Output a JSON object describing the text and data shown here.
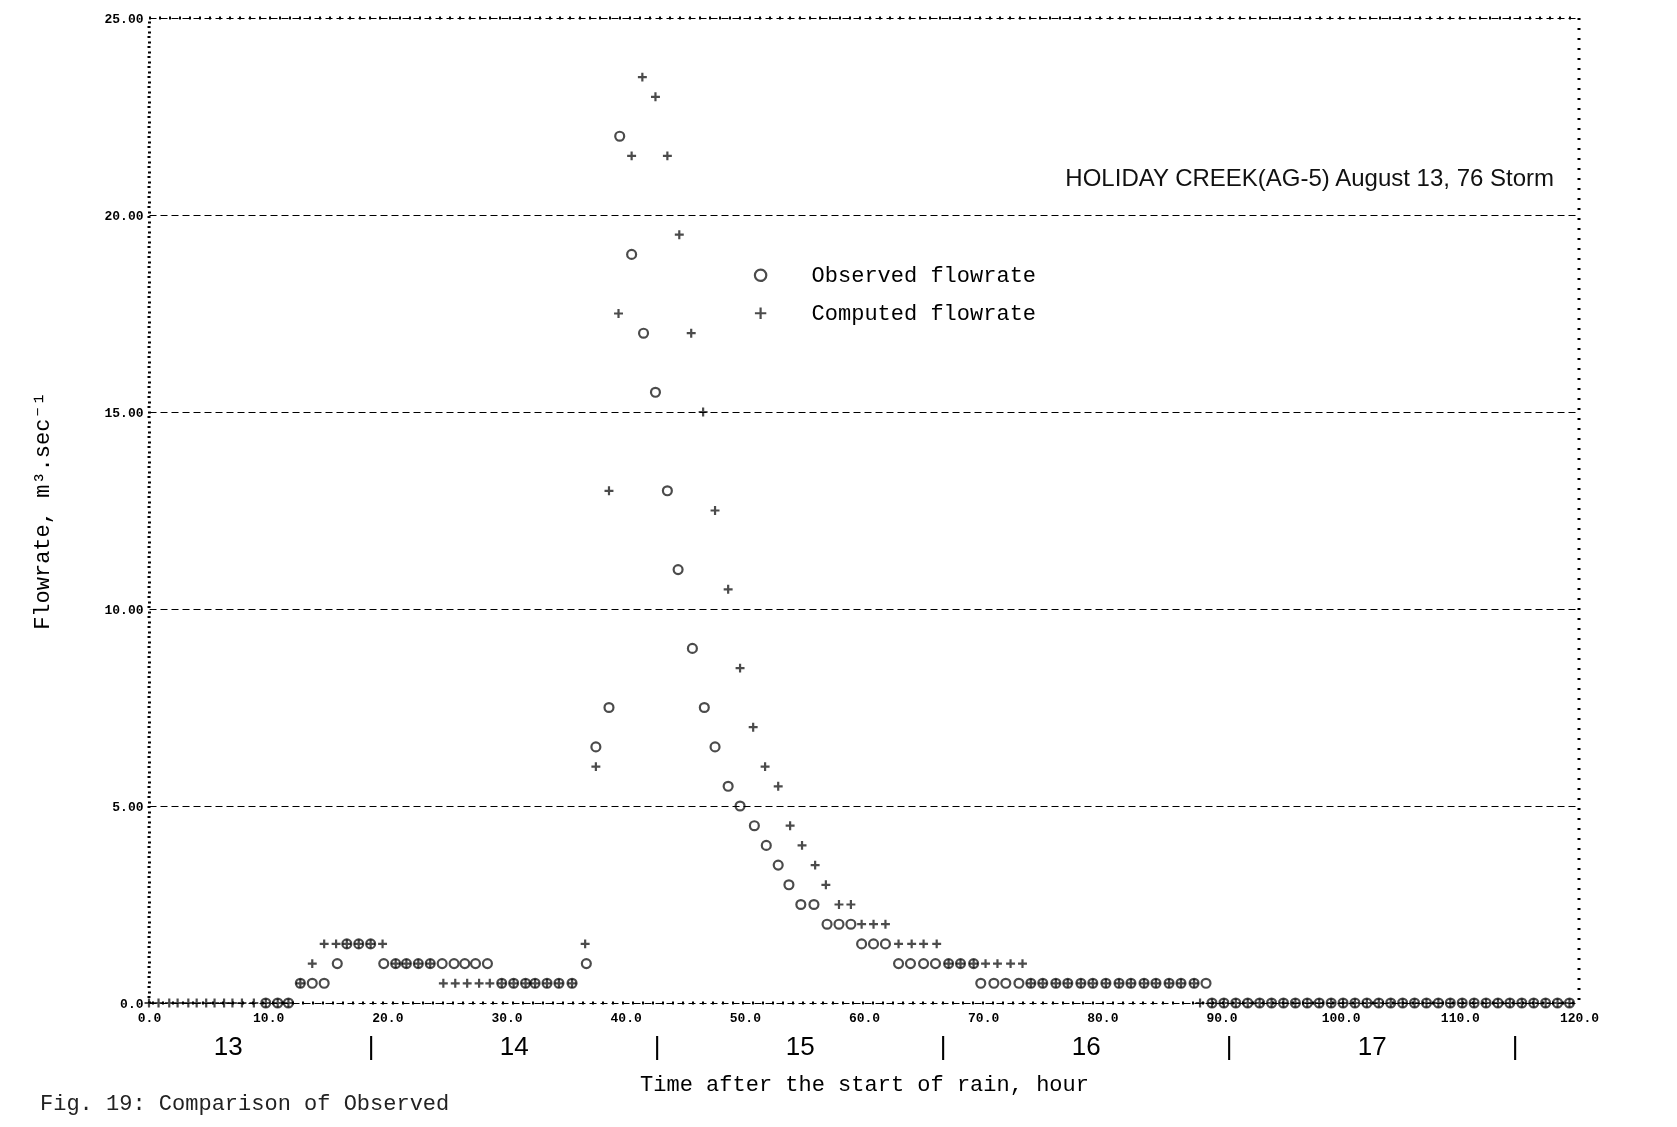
{
  "chart_data": {
    "type": "scatter",
    "title": "HOLIDAY CREEK(AG-5)  August 13, 76 Storm",
    "xlabel": "Time after the start of rain, hour",
    "ylabel": "Flowrate, m³.sec⁻¹",
    "annotations": [
      "Fig. 19: Comparison of Observed"
    ],
    "xlim": [
      0,
      120
    ],
    "xticks": [
      {
        "value": 0,
        "label": "0.0"
      },
      {
        "value": 10,
        "label": "10.0"
      },
      {
        "value": 20,
        "label": "20.0"
      },
      {
        "value": 30,
        "label": "30.0"
      },
      {
        "value": 40,
        "label": "40.0"
      },
      {
        "value": 50,
        "label": "50.0"
      },
      {
        "value": 60,
        "label": "60.0"
      },
      {
        "value": 70,
        "label": "70.0"
      },
      {
        "value": 80,
        "label": "80.0"
      },
      {
        "value": 90,
        "label": "90.0"
      },
      {
        "value": 100,
        "label": "100.0"
      },
      {
        "value": 110,
        "label": "110.0"
      },
      {
        "value": 120,
        "label": "120.0"
      }
    ],
    "x2lim": [
      "--08-13T05:24",
      "--08-18T05:24"
    ],
    "x2ticks": [
      {
        "value": "--08-13T12:00",
        "label": "13"
      },
      {
        "value": "--08-14T00:00",
        "label": "|"
      },
      {
        "value": "--08-14T12:00",
        "label": "14"
      },
      {
        "value": "--08-15T00:00",
        "label": "|"
      },
      {
        "value": "--08-15T12:00",
        "label": "15"
      },
      {
        "value": "--08-16T00:00",
        "label": "|"
      },
      {
        "value": "--08-16T12:00",
        "label": "16"
      },
      {
        "value": "--08-17T00:00",
        "label": "|"
      },
      {
        "value": "--08-17T12:00",
        "label": "17"
      },
      {
        "value": "--08-18T00:00",
        "label": "|"
      }
    ],
    "ylim": [
      0,
      25
    ],
    "yticks": [
      {
        "value": 0,
        "label": "0.0"
      },
      {
        "value": 5,
        "label": "5.00"
      },
      {
        "value": 10,
        "label": "10.00"
      },
      {
        "value": 15,
        "label": "15.00"
      },
      {
        "value": 20,
        "label": "20.00"
      },
      {
        "value": 25,
        "label": "25.00"
      }
    ],
    "grid": "y",
    "legend": "top right",
    "series": [
      {
        "name": "Observed flowrate",
        "color": "#000000",
        "marker": "circle",
        "x": [
          9.8,
          10.8,
          11.7,
          12.7,
          13.7,
          14.7,
          15.8,
          16.6,
          17.6,
          18.6,
          19.7,
          20.7,
          21.6,
          22.6,
          23.6,
          24.6,
          25.6,
          26.5,
          27.4,
          28.4,
          29.6,
          30.6,
          31.6,
          32.4,
          33.4,
          34.4,
          35.5,
          36.7,
          37.5,
          38.6,
          39.5,
          40.5,
          41.5,
          42.5,
          43.5,
          44.4,
          45.6,
          46.6,
          47.5,
          48.6,
          49.6,
          50.8,
          51.8,
          52.8,
          53.7,
          54.7,
          55.8,
          56.9,
          57.9,
          58.9,
          59.8,
          60.8,
          61.8,
          62.9,
          63.9,
          65.0,
          66.0,
          67.1,
          68.1,
          69.2,
          69.8,
          70.9,
          71.9,
          73.0,
          74.0,
          75.0,
          76.1,
          77.1,
          78.2,
          79.2,
          80.3,
          81.4,
          82.4,
          83.5,
          84.5,
          85.6,
          86.6,
          87.7,
          88.7,
          89.2,
          90.2,
          91.2,
          92.2,
          93.2,
          94.2,
          95.2,
          96.2,
          97.2,
          98.2,
          99.2,
          100.2,
          101.2,
          102.2,
          103.2,
          104.2,
          105.2,
          106.2,
          107.2,
          108.2,
          109.2,
          110.2,
          111.2,
          112.2,
          113.2,
          114.2,
          115.2,
          116.2,
          117.2,
          118.2,
          119.2
        ],
        "values": [
          0,
          0,
          0,
          0.5,
          0.5,
          0.5,
          1,
          1.5,
          1.5,
          1.5,
          1,
          1,
          1,
          1,
          1,
          1,
          1,
          1,
          1,
          1,
          0.5,
          0.5,
          0.5,
          0.5,
          0.5,
          0.5,
          0.5,
          1,
          6.5,
          7.5,
          22,
          19,
          17,
          15.5,
          13,
          11,
          9,
          7.5,
          6.5,
          5.5,
          5,
          4.5,
          4,
          3.5,
          3,
          2.5,
          2.5,
          2,
          2,
          2,
          1.5,
          1.5,
          1.5,
          1,
          1,
          1,
          1,
          1,
          1,
          1,
          0.5,
          0.5,
          0.5,
          0.5,
          0.5,
          0.5,
          0.5,
          0.5,
          0.5,
          0.5,
          0.5,
          0.5,
          0.5,
          0.5,
          0.5,
          0.5,
          0.5,
          0.5,
          0.5,
          0,
          0,
          0,
          0,
          0,
          0,
          0,
          0,
          0,
          0,
          0,
          0,
          0,
          0,
          0,
          0,
          0,
          0,
          0,
          0,
          0,
          0,
          0,
          0,
          0,
          0,
          0,
          0,
          0,
          0,
          0
        ]
      },
      {
        "name": "Computed flowrate",
        "color": "#000000",
        "marker": "cross",
        "x": [
          0,
          0.8,
          1.7,
          2.4,
          3.3,
          4.0,
          4.8,
          5.5,
          6.3,
          7.0,
          7.8,
          8.8,
          9.8,
          10.8,
          11.7,
          12.7,
          13.7,
          14.7,
          15.7,
          16.6,
          17.6,
          18.6,
          19.6,
          20.7,
          21.6,
          22.6,
          23.6,
          24.7,
          25.7,
          26.7,
          27.7,
          28.6,
          29.6,
          30.6,
          31.6,
          32.4,
          33.4,
          34.4,
          35.5,
          36.6,
          37.5,
          38.6,
          39.4,
          40.5,
          41.4,
          42.5,
          43.5,
          44.5,
          45.5,
          46.5,
          47.5,
          48.6,
          49.6,
          50.7,
          51.7,
          52.8,
          53.8,
          54.8,
          55.9,
          56.8,
          57.9,
          58.9,
          59.8,
          60.8,
          61.8,
          62.9,
          64.0,
          65.0,
          66.1,
          67.1,
          68.1,
          69.2,
          70.2,
          71.2,
          72.3,
          73.3,
          74.0,
          75.0,
          76.1,
          77.1,
          78.2,
          79.2,
          80.3,
          81.4,
          82.4,
          83.5,
          84.5,
          85.6,
          86.6,
          87.7,
          88.2,
          89.2,
          90.2,
          91.2,
          92.2,
          93.2,
          94.2,
          95.2,
          96.2,
          97.2,
          98.2,
          99.2,
          100.2,
          101.2,
          102.2,
          103.2,
          104.2,
          105.2,
          106.2,
          107.2,
          108.2,
          109.2,
          110.2,
          111.2,
          112.2,
          113.2,
          114.2,
          115.2,
          116.2,
          117.2,
          118.2,
          119.2
        ],
        "values": [
          0,
          0,
          0,
          0,
          0,
          0,
          0,
          0,
          0,
          0,
          0,
          0,
          0,
          0,
          0,
          0.5,
          1,
          1.5,
          1.5,
          1.5,
          1.5,
          1.5,
          1.5,
          1,
          1,
          1,
          1,
          0.5,
          0.5,
          0.5,
          0.5,
          0.5,
          0.5,
          0.5,
          0.5,
          0.5,
          0.5,
          0.5,
          0.5,
          1.5,
          6,
          13,
          17.5,
          21.5,
          23.5,
          23,
          21.5,
          19.5,
          17,
          15,
          12.5,
          10.5,
          8.5,
          7,
          6,
          5.5,
          4.5,
          4,
          3.5,
          3,
          2.5,
          2.5,
          2,
          2,
          2,
          1.5,
          1.5,
          1.5,
          1.5,
          1,
          1,
          1,
          1,
          1,
          1,
          1,
          0.5,
          0.5,
          0.5,
          0.5,
          0.5,
          0.5,
          0.5,
          0.5,
          0.5,
          0.5,
          0.5,
          0.5,
          0.5,
          0.5,
          0,
          0,
          0,
          0,
          0,
          0,
          0,
          0,
          0,
          0,
          0,
          0,
          0,
          0,
          0,
          0,
          0,
          0,
          0,
          0,
          0,
          0,
          0,
          0,
          0,
          0,
          0,
          0,
          0,
          0,
          0,
          0
        ]
      }
    ]
  }
}
